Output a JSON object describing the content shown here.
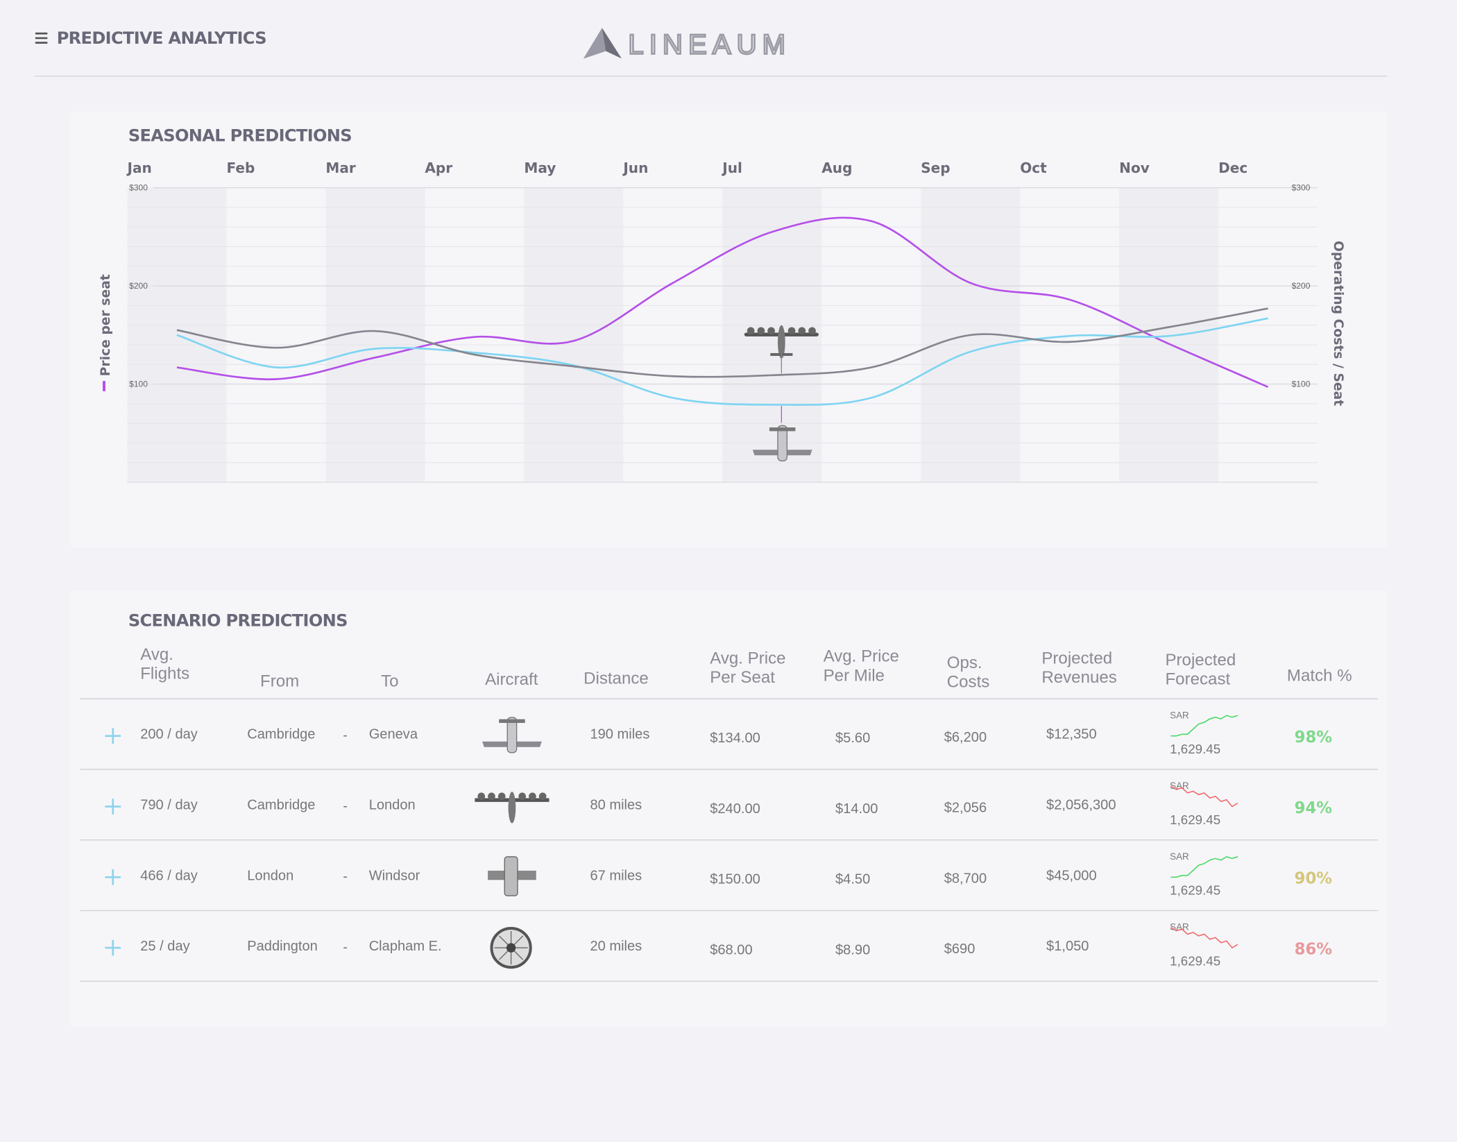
{
  "header": {
    "title": "PREDICTIVE ANALYTICS",
    "logo": "LINEAUM"
  },
  "chart_data": {
    "type": "line",
    "title": "SEASONAL PREDICTIONS",
    "categories": [
      "Jan",
      "Feb",
      "Mar",
      "Apr",
      "May",
      "Jun",
      "Jul",
      "Aug",
      "Sep",
      "Oct",
      "Nov",
      "Dec"
    ],
    "series": [
      {
        "name": "Price per seat",
        "color": "#b550e8",
        "values": [
          117,
          105,
          127,
          148,
          144,
          203,
          255,
          266,
          203,
          186,
          141,
          97
        ]
      },
      {
        "color": "#7fd4f2",
        "values": [
          150,
          117,
          136,
          132,
          119,
          86,
          79,
          86,
          133,
          149,
          149,
          167
        ]
      },
      {
        "name": "Operating Costs / Seat",
        "color": "#85858f",
        "axis": "y2",
        "values": [
          155,
          137,
          154,
          130,
          118,
          108,
          109,
          117,
          150,
          143,
          158,
          177
        ]
      }
    ],
    "ylim": [
      0,
      300
    ],
    "yticks": [
      {
        "value": 100,
        "label": "$100"
      },
      {
        "value": 200,
        "label": "$200"
      },
      {
        "value": 300,
        "label": "$300"
      }
    ],
    "y2lim": [
      0,
      300
    ],
    "y2ticks": [
      {
        "value": 100,
        "label": "$100"
      },
      {
        "value": 200,
        "label": "$200"
      },
      {
        "value": 300,
        "label": "$300"
      }
    ],
    "grid": true
  },
  "scenarios": {
    "title": "SCENARIO PREDICTIONS",
    "columns": [
      "Avg.\nFlights",
      "From",
      "To",
      "Aircraft",
      "Distance",
      "Avg. Price\nPer Seat",
      "Avg. Price\nPer Mile",
      "Ops.\nCosts",
      "Projected\nRevenues",
      "Projected\nForecast",
      "Match %"
    ],
    "route_separator": "-",
    "rows": [
      {
        "flights": "200 / day",
        "from": "Cambridge",
        "to": "Geneva",
        "distance": "190 miles",
        "price_seat": "$134.00",
        "price_mile": "$5.60",
        "ops": "$6,200",
        "revenue": "$12,350",
        "forecast": {
          "currency": "SAR",
          "value": "1,629.45",
          "color": "#4cd964",
          "trend": [
            2,
            2,
            3,
            3,
            6,
            9,
            10,
            12,
            13,
            12,
            14,
            13,
            14
          ]
        },
        "match": "98%",
        "match_color": "#7fd98a"
      },
      {
        "flights": "790 / day",
        "from": "Cambridge",
        "to": "London",
        "distance": "80 miles",
        "price_seat": "$240.00",
        "price_mile": "$14.00",
        "ops": "$2,056",
        "revenue": "$2,056,300",
        "forecast": {
          "currency": "SAR",
          "value": "1,629.45",
          "color": "#f06a6a",
          "trend": [
            14,
            12,
            13,
            10,
            11,
            9,
            10,
            7,
            8,
            5,
            6,
            2,
            4
          ]
        },
        "match": "94%",
        "match_color": "#7fd98a"
      },
      {
        "flights": "466 / day",
        "from": "London",
        "to": "Windsor",
        "distance": "67 miles",
        "price_seat": "$150.00",
        "price_mile": "$4.50",
        "ops": "$8,700",
        "revenue": "$45,000",
        "forecast": {
          "currency": "SAR",
          "value": "1,629.45",
          "color": "#4cd964",
          "trend": [
            2,
            2,
            3,
            3,
            6,
            9,
            10,
            12,
            13,
            12,
            14,
            13,
            14
          ]
        },
        "match": "90%",
        "match_color": "#d4c77a"
      },
      {
        "flights": "25 / day",
        "from": "Paddington",
        "to": "Clapham E.",
        "distance": "20 miles",
        "price_seat": "$68.00",
        "price_mile": "$8.90",
        "ops": "$690",
        "revenue": "$1,050",
        "forecast": {
          "currency": "SAR",
          "value": "1,629.45",
          "color": "#f06a6a",
          "trend": [
            14,
            12,
            13,
            10,
            11,
            9,
            10,
            7,
            8,
            5,
            6,
            2,
            4
          ]
        },
        "match": "86%",
        "match_color": "#e89a9a"
      }
    ]
  }
}
